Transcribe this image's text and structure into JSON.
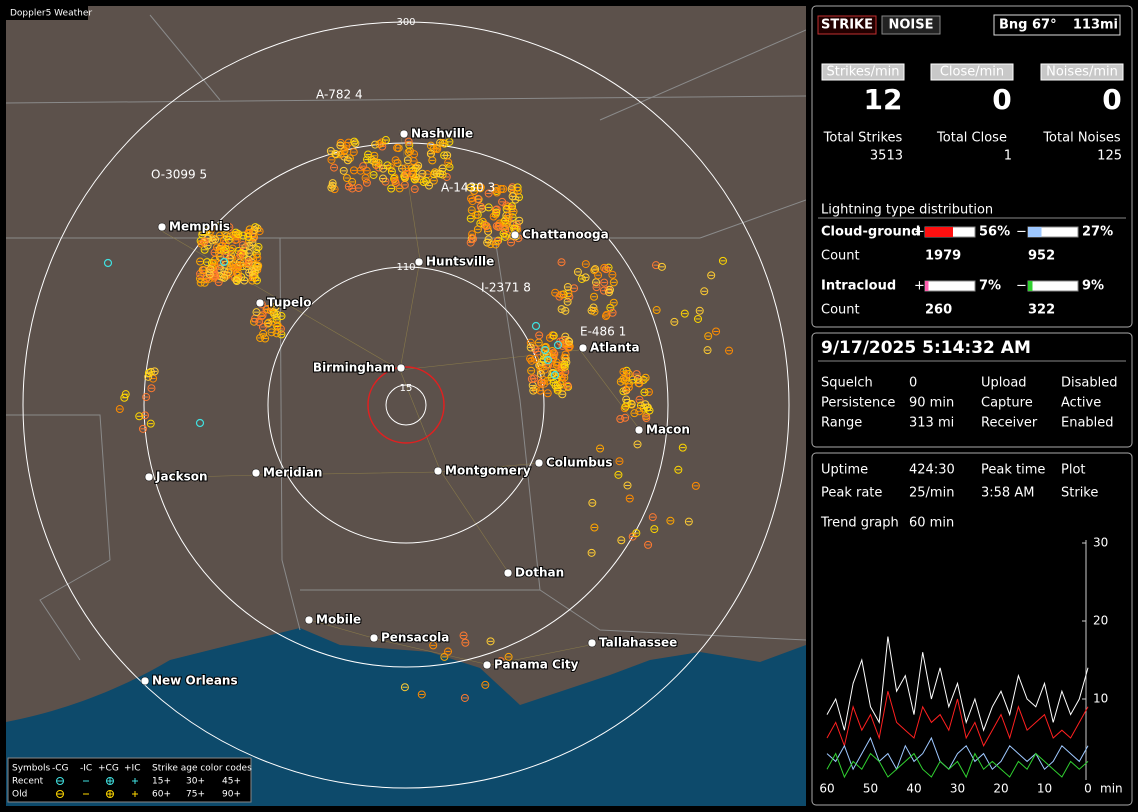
{
  "map": {
    "title": "Doppler5 Weather",
    "ring_labels": [
      "300",
      "110",
      "15"
    ],
    "cities": [
      "Nashville",
      "Memphis",
      "Chattanooga",
      "Huntsville",
      "Tupelo",
      "Atlanta",
      "Birmingham",
      "Macon",
      "Jackson",
      "Meridian",
      "Montgomery",
      "Columbus",
      "Dothan",
      "Mobile",
      "Pensacola",
      "Tallahassee",
      "Panama City",
      "New Orleans"
    ],
    "storm_tags": [
      "A-782 4",
      "O-3099 5",
      "A-1430 3",
      "I-2371 8",
      "E-486 1"
    ],
    "legend": {
      "symbols": "Symbols",
      "columns": [
        "-CG",
        "-IC",
        "+CG",
        "+IC"
      ],
      "age_title": "Strike age color codes",
      "rows": [
        "Recent",
        "Old"
      ],
      "ages": [
        [
          "15+",
          "30+",
          "45+"
        ],
        [
          "60+",
          "75+",
          "90+"
        ]
      ]
    }
  },
  "panel": {
    "strike": "STRIKE",
    "noise": "NOISE",
    "bearing": "Bng 67°",
    "distance": "113mi",
    "rates": [
      {
        "label": "Strikes/min",
        "value": 12
      },
      {
        "label": "Close/min",
        "value": 0
      },
      {
        "label": "Noises/min",
        "value": 0
      }
    ],
    "totals": [
      {
        "label": "Total Strikes",
        "value": 3513
      },
      {
        "label": "Total Close",
        "value": 1
      },
      {
        "label": "Total Noises",
        "value": 125
      }
    ],
    "distribution": {
      "title": "Lightning type distribution",
      "signs": [
        "+",
        "−"
      ],
      "count_label": "Count",
      "rows": [
        {
          "label": "Cloud-ground",
          "pos": {
            "value": 56,
            "label": "56%"
          },
          "neg": {
            "value": 27,
            "label": "27%"
          },
          "pos_count": 1979,
          "neg_count": 952
        },
        {
          "label": "Intracloud",
          "pos": {
            "value": 7,
            "label": "7%"
          },
          "neg": {
            "value": 9,
            "label": "9%"
          },
          "pos_count": 260,
          "neg_count": 322
        }
      ]
    },
    "datetime": "9/17/2025 5:14:32 AM",
    "settings": [
      [
        "Squelch",
        "0",
        "Upload",
        "Disabled"
      ],
      [
        "Persistence",
        "90 min",
        "Capture",
        "Active"
      ],
      [
        "Range",
        "313 mi",
        "Receiver",
        "Enabled"
      ]
    ],
    "status": [
      [
        "Uptime",
        "424:30",
        "Peak time",
        "Plot"
      ],
      [
        "Peak rate",
        "25/min",
        "3:58 AM",
        "Strike"
      ]
    ],
    "trend_label": "Trend graph",
    "trend_window": "60 min",
    "trend": {
      "x": [
        60,
        58,
        56,
        54,
        52,
        50,
        48,
        46,
        44,
        42,
        40,
        38,
        36,
        34,
        32,
        30,
        28,
        26,
        24,
        22,
        20,
        18,
        16,
        14,
        12,
        10,
        8,
        6,
        4,
        2,
        0
      ],
      "xlim": [
        60,
        0
      ],
      "ylim": [
        0,
        30
      ],
      "yticks": [
        30,
        20,
        10
      ],
      "xticks": [
        60,
        50,
        40,
        30,
        20,
        10,
        0
      ],
      "x_unit": "min",
      "series": [
        {
          "color": "#ffffff",
          "values": [
            8,
            10,
            6,
            12,
            15,
            9,
            7,
            18,
            11,
            13,
            8,
            16,
            10,
            14,
            9,
            12,
            7,
            10,
            6,
            9,
            11,
            8,
            13,
            10,
            9,
            12,
            7,
            11,
            8,
            10,
            14
          ]
        },
        {
          "color": "#ff2020",
          "values": [
            5,
            7,
            4,
            9,
            6,
            8,
            5,
            11,
            7,
            6,
            5,
            9,
            7,
            8,
            6,
            10,
            5,
            7,
            4,
            6,
            8,
            5,
            9,
            6,
            7,
            8,
            5,
            6,
            5,
            7,
            9
          ]
        },
        {
          "color": "#9ec8ff",
          "values": [
            3,
            2,
            4,
            1,
            3,
            5,
            2,
            3,
            1,
            4,
            2,
            3,
            5,
            2,
            1,
            3,
            4,
            2,
            3,
            1,
            2,
            4,
            3,
            2,
            3,
            1,
            2,
            4,
            3,
            2,
            4
          ]
        },
        {
          "color": "#30d030",
          "values": [
            1,
            3,
            0,
            2,
            1,
            3,
            2,
            0,
            1,
            2,
            3,
            1,
            0,
            2,
            1,
            2,
            0,
            3,
            1,
            2,
            1,
            0,
            2,
            1,
            3,
            2,
            1,
            0,
            2,
            1,
            2
          ]
        }
      ]
    }
  }
}
